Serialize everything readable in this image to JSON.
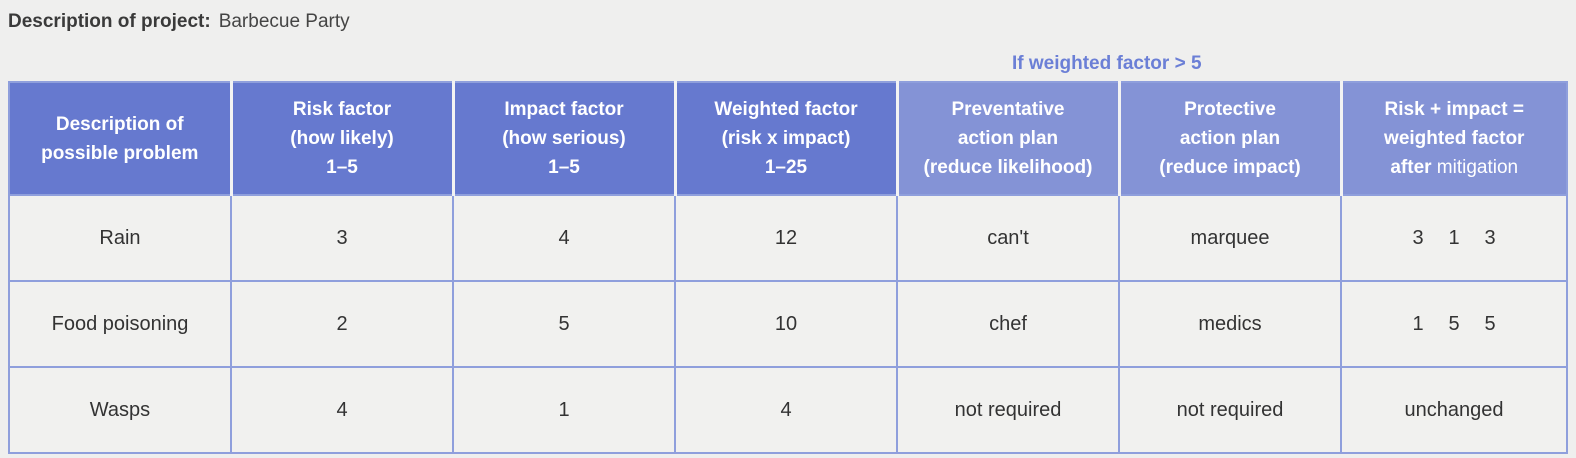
{
  "project": {
    "label": "Description of project:",
    "value": "Barbecue Party"
  },
  "annotation": "If weighted factor > 5",
  "headers": [
    {
      "lines": [
        "Description of",
        "possible problem"
      ]
    },
    {
      "lines": [
        "Risk factor",
        "(how likely)",
        "1–5"
      ]
    },
    {
      "lines": [
        "Impact factor",
        "(how serious)",
        "1–5"
      ]
    },
    {
      "lines": [
        "Weighted factor",
        "(risk x impact)",
        "1–25"
      ]
    },
    {
      "lines": [
        "Preventative",
        "action plan",
        "(reduce likelihood)"
      ]
    },
    {
      "lines": [
        "Protective",
        "action plan",
        "(reduce impact)"
      ]
    },
    {
      "lines": [
        "Risk + impact =",
        "weighted factor"
      ],
      "after_word": "after",
      "after_rest": " mitigation"
    }
  ],
  "rows": [
    {
      "problem": "Rain",
      "risk": "3",
      "impact": "4",
      "weighted": "12",
      "preventative": "can't",
      "protective": "marquee",
      "after": [
        "3",
        "1",
        "3"
      ]
    },
    {
      "problem": "Food poisoning",
      "risk": "2",
      "impact": "5",
      "weighted": "10",
      "preventative": "chef",
      "protective": "medics",
      "after": [
        "1",
        "5",
        "5"
      ]
    },
    {
      "problem": "Wasps",
      "risk": "4",
      "impact": "1",
      "weighted": "4",
      "preventative": "not required",
      "protective": "not required",
      "after_text": "unchanged"
    }
  ],
  "colors": {
    "header_dark": "#6679cf",
    "header_light": "#8493d6",
    "annotation": "#6b7fd6",
    "grid": "#8f9fdc",
    "background": "#efefee"
  }
}
